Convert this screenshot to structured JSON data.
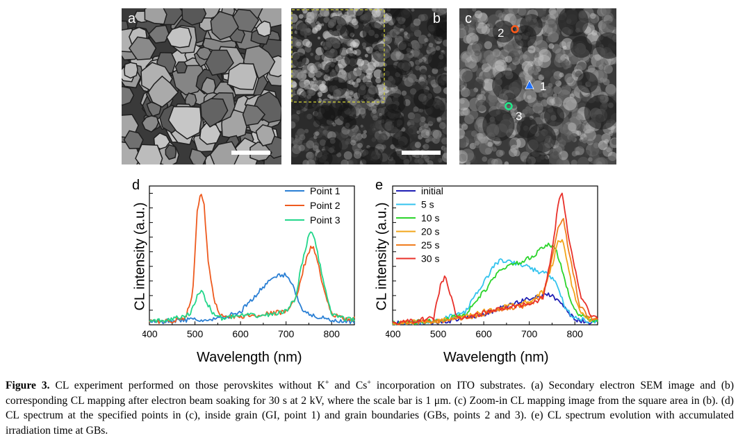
{
  "panels": {
    "a": {
      "letter": "a"
    },
    "b": {
      "letter": "b"
    },
    "c": {
      "letter": "c",
      "markers": [
        "2",
        "1",
        "3"
      ]
    }
  },
  "colors": {
    "point1": "#2a7fd4",
    "point2": "#ee5a1e",
    "point3": "#22d68a",
    "initial": "#1f1fb4",
    "s5": "#33c3ee",
    "s10": "#2bd42b",
    "s20": "#f2a51a",
    "s25": "#f07d1e",
    "s30": "#e8302a",
    "marker2": "#ff5a1a",
    "marker1": "#1b6fff",
    "marker3": "#22e88a",
    "dashbox": "#d8d83a"
  },
  "chart_data": [
    {
      "panel": "d",
      "type": "line",
      "xlabel": "Wavelength (nm)",
      "ylabel": "CL intensity (a.u.)",
      "xlim": [
        400,
        850
      ],
      "ylim": [
        0,
        1.05
      ],
      "xticks": [
        400,
        500,
        600,
        700,
        800
      ],
      "legend_position": "top-right",
      "series": [
        {
          "name": "Point 1",
          "color": "#2a7fd4",
          "x": [
            400,
            450,
            500,
            530,
            560,
            600,
            640,
            670,
            690,
            705,
            720,
            735,
            750,
            770,
            800,
            830,
            850
          ],
          "y": [
            0.02,
            0.03,
            0.04,
            0.03,
            0.05,
            0.1,
            0.25,
            0.35,
            0.38,
            0.37,
            0.25,
            0.12,
            0.08,
            0.06,
            0.03,
            0.02,
            0.02
          ]
        },
        {
          "name": "Point 2",
          "color": "#ee5a1e",
          "x": [
            400,
            450,
            480,
            495,
            505,
            512,
            520,
            530,
            545,
            560,
            600,
            650,
            700,
            720,
            740,
            755,
            765,
            780,
            800,
            830,
            850
          ],
          "y": [
            0.02,
            0.03,
            0.05,
            0.25,
            0.85,
            1.0,
            0.9,
            0.45,
            0.15,
            0.06,
            0.06,
            0.08,
            0.1,
            0.18,
            0.45,
            0.6,
            0.55,
            0.3,
            0.08,
            0.04,
            0.05
          ]
        },
        {
          "name": "Point 3",
          "color": "#22d68a",
          "x": [
            400,
            450,
            490,
            505,
            515,
            525,
            540,
            560,
            600,
            650,
            700,
            720,
            740,
            755,
            765,
            780,
            800,
            830,
            850
          ],
          "y": [
            0.02,
            0.04,
            0.08,
            0.22,
            0.26,
            0.18,
            0.08,
            0.05,
            0.07,
            0.07,
            0.1,
            0.2,
            0.55,
            0.73,
            0.62,
            0.35,
            0.08,
            0.04,
            0.04
          ]
        }
      ]
    },
    {
      "panel": "e",
      "type": "line",
      "xlabel": "Wavelength (nm)",
      "ylabel": "CL intensity (a.u.)",
      "xlim": [
        400,
        850
      ],
      "ylim": [
        0,
        1.05
      ],
      "xticks": [
        400,
        500,
        600,
        700,
        800
      ],
      "legend_position": "top-left",
      "series": [
        {
          "name": "initial",
          "color": "#1f1fb4",
          "x": [
            400,
            500,
            550,
            600,
            650,
            700,
            740,
            760,
            780,
            800,
            830,
            850
          ],
          "y": [
            0.01,
            0.02,
            0.04,
            0.08,
            0.14,
            0.2,
            0.23,
            0.2,
            0.12,
            0.04,
            0.02,
            0.02
          ]
        },
        {
          "name": "5 s",
          "color": "#33c3ee",
          "x": [
            400,
            500,
            560,
            600,
            625,
            640,
            660,
            690,
            720,
            745,
            760,
            780,
            800,
            830,
            850
          ],
          "y": [
            0.01,
            0.03,
            0.1,
            0.32,
            0.46,
            0.49,
            0.47,
            0.45,
            0.4,
            0.38,
            0.3,
            0.12,
            0.05,
            0.03,
            0.03
          ]
        },
        {
          "name": "10 s",
          "color": "#2bd42b",
          "x": [
            400,
            500,
            560,
            600,
            640,
            680,
            710,
            735,
            755,
            770,
            785,
            800,
            830,
            850
          ],
          "y": [
            0.01,
            0.03,
            0.08,
            0.25,
            0.43,
            0.47,
            0.52,
            0.6,
            0.6,
            0.45,
            0.25,
            0.1,
            0.04,
            0.03
          ]
        },
        {
          "name": "20 s",
          "color": "#f2a51a",
          "x": [
            400,
            500,
            560,
            600,
            650,
            700,
            730,
            750,
            765,
            775,
            790,
            810,
            830,
            850
          ],
          "y": [
            0.01,
            0.03,
            0.06,
            0.1,
            0.14,
            0.18,
            0.25,
            0.45,
            0.65,
            0.62,
            0.35,
            0.1,
            0.04,
            0.03
          ]
        },
        {
          "name": "25 s",
          "color": "#f07d1e",
          "x": [
            400,
            500,
            560,
            600,
            650,
            700,
            730,
            750,
            765,
            775,
            790,
            810,
            830,
            850
          ],
          "y": [
            0.01,
            0.03,
            0.05,
            0.08,
            0.12,
            0.15,
            0.22,
            0.5,
            0.76,
            0.8,
            0.5,
            0.15,
            0.06,
            0.04
          ]
        },
        {
          "name": "30 s",
          "color": "#e8302a",
          "x": [
            400,
            490,
            505,
            515,
            525,
            540,
            560,
            600,
            650,
            700,
            730,
            750,
            765,
            772,
            780,
            795,
            815,
            835,
            850
          ],
          "y": [
            0.01,
            0.05,
            0.3,
            0.37,
            0.25,
            0.06,
            0.05,
            0.09,
            0.13,
            0.16,
            0.2,
            0.55,
            0.95,
            1.0,
            0.8,
            0.5,
            0.2,
            0.08,
            0.05
          ]
        }
      ]
    }
  ],
  "caption": {
    "label": "Figure 3.",
    "text_1": " CL experiment performed on those perovskites without K",
    "sup_1": "+",
    "text_2": " and Cs",
    "sup_2": "+",
    "text_3": " incorporation on ITO substrates. (a) Secondary electron SEM image and (b) corresponding CL mapping after electron beam soaking for 30 s at 2 kV, where the scale bar is 1 μm. (c) Zoom-in CL mapping image from the square area in (b). (d) CL spectrum at the specified points in (c), inside grain (GI, point 1) and grain boundaries (GBs, points 2 and 3). (e) CL spectrum evolution with accumulated irradiation time at GBs."
  }
}
